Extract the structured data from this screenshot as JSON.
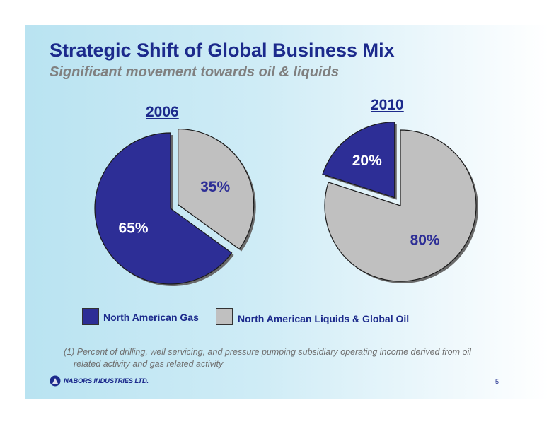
{
  "slide": {
    "title": "Strategic Shift of Global Business Mix",
    "subtitle": "Significant movement towards oil & liquids",
    "footnote_line1": "(1) Percent of drilling, well servicing, and pressure pumping subsidiary operating income derived from oil",
    "footnote_line2": "related activity and gas related activity",
    "logo_text": "NABORS INDUSTRIES LTD.",
    "page_number": "5"
  },
  "legend": [
    {
      "label": "North American Gas",
      "color": "#2d2e96"
    },
    {
      "label": "North American Liquids & Global Oil",
      "color": "#c0c0c0"
    }
  ],
  "chart_data": [
    {
      "type": "pie",
      "title": "2006",
      "categories": [
        "North American Gas",
        "North American Liquids & Global Oil"
      ],
      "values": [
        65,
        35
      ],
      "labels": [
        "65%",
        "35%"
      ],
      "colors": [
        "#2d2e96",
        "#c0c0c0"
      ],
      "exploded": "North American Liquids & Global Oil"
    },
    {
      "type": "pie",
      "title": "2010",
      "categories": [
        "North American Gas",
        "North American Liquids & Global Oil"
      ],
      "values": [
        20,
        80
      ],
      "labels": [
        "20%",
        "80%"
      ],
      "colors": [
        "#2d2e96",
        "#c0c0c0"
      ],
      "exploded": "North American Gas"
    }
  ]
}
